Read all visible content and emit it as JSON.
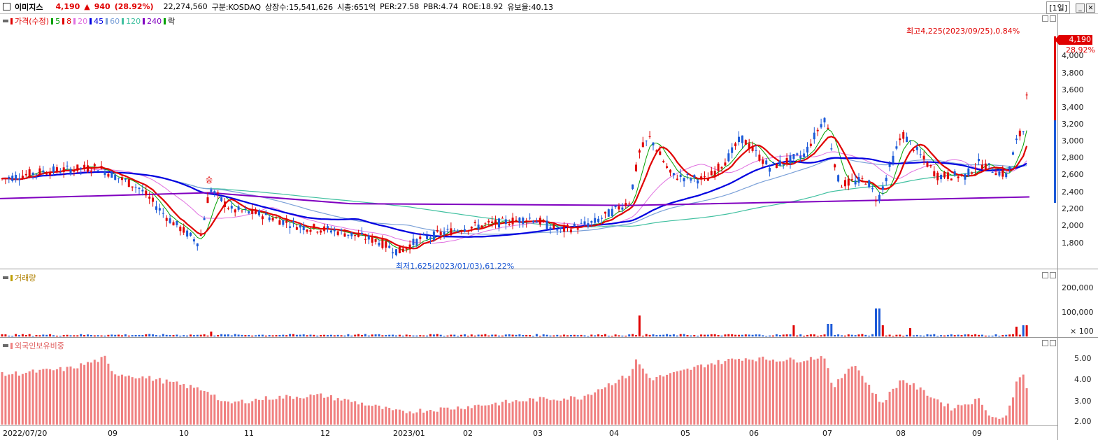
{
  "header": {
    "stock_name": "이미지스",
    "price": "4,190",
    "change_arrow": "▲",
    "change": "940",
    "change_pct": "(28.92%)",
    "volume": "22,274,560",
    "market": "구분:KOSDAQ",
    "listed_shares": "상장수:15,541,626",
    "market_cap": "시총:651억",
    "per": "PER:27.58",
    "pbr": "PBR:4.74",
    "roe": "ROE:18.92",
    "reserve": "유보율:40.13",
    "period": "[1일]",
    "min_btn": "_",
    "close_btn": "✕"
  },
  "price_legend": {
    "price_label": "가격(수정)",
    "ma": [
      {
        "label": "5",
        "color": "#00a000"
      },
      {
        "label": "8",
        "color": "#e00000"
      },
      {
        "label": "20",
        "color": "#e070e0"
      },
      {
        "label": "45",
        "color": "#0000e0"
      },
      {
        "label": "60",
        "color": "#7aa0d8"
      },
      {
        "label": "120",
        "color": "#40c0a0"
      },
      {
        "label": "240",
        "color": "#8000c0"
      }
    ],
    "rak": "락"
  },
  "price_annotations": {
    "high": "최고4,225(2023/09/25),0.84%",
    "low": "최저1,625(2023/01/03),61.22%",
    "event": "승",
    "current_price": "4,190",
    "current_pct": "28.92%"
  },
  "volume_legend": "거래량",
  "foreign_legend": "외국인보유비중",
  "price_axis": [
    "4,000",
    "3,800",
    "3,600",
    "3,400",
    "3,200",
    "3,000",
    "2,800",
    "2,600",
    "2,400",
    "2,200",
    "2,000",
    "1,800"
  ],
  "volume_axis": [
    "200,000",
    "100,000",
    "× 100"
  ],
  "foreign_axis": [
    "5.00",
    "4.00",
    "3.00",
    "2.00"
  ],
  "x_axis": [
    "2022/07/20",
    "09",
    "10",
    "11",
    "12",
    "2023/01",
    "02",
    "03",
    "04",
    "05",
    "06",
    "07",
    "08",
    "09"
  ],
  "colors": {
    "up": "#e00000",
    "down": "#1c5ad8",
    "foreign_bar": "#f08080"
  }
}
